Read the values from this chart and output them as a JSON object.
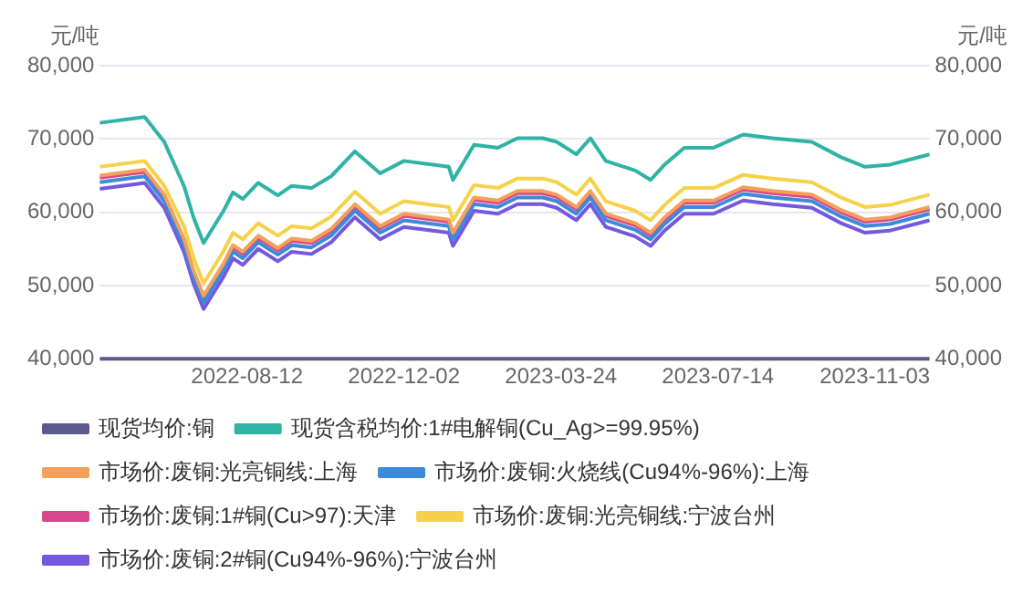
{
  "chart_data": {
    "type": "line",
    "ylabel": "元/吨",
    "y2label": "元/吨",
    "x": [
      "2022-04-29",
      "2022-05-31",
      "2022-06-14",
      "2022-06-28",
      "2022-07-05",
      "2022-07-12",
      "2022-07-26",
      "2022-08-02",
      "2022-08-09",
      "2022-08-20",
      "2022-09-03",
      "2022-09-13",
      "2022-09-27",
      "2022-10-11",
      "2022-10-28",
      "2022-11-15",
      "2022-12-02",
      "2023-01-03",
      "2023-01-06",
      "2023-01-21",
      "2023-02-07",
      "2023-02-21",
      "2023-03-11",
      "2023-03-21",
      "2023-04-04",
      "2023-04-14",
      "2023-04-25",
      "2023-05-16",
      "2023-05-27",
      "2023-06-06",
      "2023-06-20",
      "2023-07-11",
      "2023-08-01",
      "2023-08-22",
      "2023-09-19",
      "2023-10-10",
      "2023-10-27",
      "2023-11-14",
      "2023-12-12"
    ],
    "series": [
      {
        "name": "现货均价:铜",
        "color": "#5b5a8c",
        "values": [
          40000,
          40000,
          40000,
          40000,
          40000,
          40000,
          40000,
          40000,
          40000,
          40000,
          40000,
          40000,
          40000,
          40000,
          40000,
          40000,
          40000,
          40000,
          40000,
          40000,
          40000,
          40000,
          40000,
          40000,
          40000,
          40000,
          40000,
          40000,
          40000,
          40000,
          40000,
          40000,
          40000,
          40000,
          40000,
          40000,
          40000,
          40000,
          40000
        ]
      },
      {
        "name": "现货含税均价:1#电解铜(Cu_Ag>=99.95%)",
        "color": "#2fb3a5",
        "values": [
          72200,
          73000,
          69600,
          63600,
          59200,
          55800,
          60100,
          62700,
          61800,
          64000,
          62300,
          63600,
          63300,
          64900,
          68300,
          65300,
          67000,
          66200,
          64400,
          69200,
          68800,
          70100,
          70100,
          69600,
          67900,
          70100,
          67000,
          65700,
          64400,
          66500,
          68800,
          68800,
          70600,
          70100,
          69600,
          67500,
          66200,
          66500,
          67900
        ]
      },
      {
        "name": "市场价:废铜:光亮铜线:上海",
        "color": "#f4a05a",
        "values": [
          65000,
          65800,
          62400,
          56400,
          52000,
          48600,
          52900,
          55500,
          54600,
          56800,
          55100,
          56400,
          56100,
          57700,
          61100,
          58100,
          59800,
          59000,
          57200,
          62000,
          61600,
          62900,
          62900,
          62400,
          60700,
          62900,
          59800,
          58500,
          57200,
          59300,
          61600,
          61600,
          63400,
          62900,
          62400,
          60300,
          59000,
          59300,
          60700
        ]
      },
      {
        "name": "市场价:废铜:火烧线(Cu94%-96%):上海",
        "color": "#3d8ad8",
        "values": [
          64100,
          64900,
          61500,
          55500,
          51100,
          47700,
          52000,
          54600,
          53700,
          55900,
          54200,
          55500,
          55200,
          56800,
          60200,
          57200,
          58900,
          58100,
          56300,
          61100,
          60700,
          62000,
          62000,
          61500,
          59800,
          62000,
          58900,
          57600,
          56300,
          58400,
          60700,
          60700,
          62500,
          62000,
          61500,
          59400,
          58100,
          58400,
          59800
        ]
      },
      {
        "name": "市场价:废铜:1#铜(Cu>97):天津",
        "color": "#d9478f",
        "values": [
          64700,
          65500,
          62100,
          56100,
          51700,
          48300,
          52600,
          55200,
          54300,
          56500,
          54800,
          56100,
          55800,
          57400,
          60800,
          57800,
          59500,
          58700,
          56900,
          61700,
          61300,
          62600,
          62600,
          62100,
          60400,
          62600,
          59500,
          58200,
          56900,
          59000,
          61300,
          61300,
          63100,
          62600,
          62100,
          60000,
          58700,
          59000,
          60400
        ]
      },
      {
        "name": "市场价:废铜:光亮铜线:宁波台州",
        "color": "#f5d24a",
        "values": [
          66200,
          67000,
          63600,
          58100,
          53700,
          50300,
          54600,
          57200,
          56300,
          58500,
          56800,
          58100,
          57800,
          59400,
          62800,
          59800,
          61500,
          60700,
          58900,
          63700,
          63300,
          64600,
          64600,
          64100,
          62400,
          64600,
          61500,
          60200,
          58900,
          61000,
          63300,
          63300,
          65100,
          64600,
          64100,
          62000,
          60700,
          61000,
          62400
        ]
      },
      {
        "name": "市场价:废铜:2#铜(Cu94%-96%):宁波台州",
        "color": "#7459e0",
        "values": [
          63200,
          64000,
          60600,
          54600,
          50200,
          46800,
          51100,
          53700,
          52800,
          55000,
          53300,
          54600,
          54300,
          55900,
          59300,
          56300,
          58000,
          57200,
          55400,
          60200,
          59800,
          61100,
          61100,
          60600,
          58900,
          61100,
          58000,
          56700,
          55400,
          57500,
          59800,
          59800,
          61600,
          61100,
          60600,
          58500,
          57200,
          57500,
          58900
        ]
      }
    ],
    "xlim": [
      "2022-04-29",
      "2023-12-12"
    ],
    "xticks": [
      "2022-08-12",
      "2022-12-02",
      "2023-03-24",
      "2023-07-14",
      "2023-11-03"
    ],
    "ylim": [
      40000,
      80000
    ],
    "yticks": [
      {
        "value": 40000,
        "label": "40,000"
      },
      {
        "value": 50000,
        "label": "50,000"
      },
      {
        "value": 60000,
        "label": "60,000"
      },
      {
        "value": 70000,
        "label": "70,000"
      },
      {
        "value": 80000,
        "label": "80,000"
      }
    ],
    "y2lim": [
      40000,
      80000
    ],
    "y2ticks": [
      {
        "value": 40000,
        "label": "40,000"
      },
      {
        "value": 50000,
        "label": "50,000"
      },
      {
        "value": 60000,
        "label": "60,000"
      },
      {
        "value": 70000,
        "label": "70,000"
      },
      {
        "value": 80000,
        "label": "80,000"
      }
    ],
    "grid": "y",
    "legend": "bottom",
    "marker": "none",
    "line_style": "solid"
  }
}
